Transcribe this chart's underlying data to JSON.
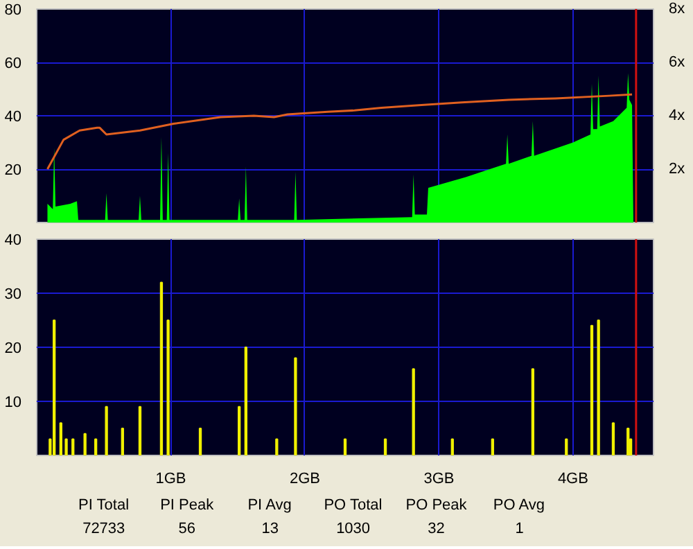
{
  "chart_data": [
    {
      "type": "area",
      "xlim": [
        0,
        4.6
      ],
      "ylim": [
        0,
        80
      ],
      "yticks": [
        20,
        40,
        60,
        80
      ],
      "y2lim": [
        0,
        8
      ],
      "y2ticks": [
        {
          "value": 2,
          "label": "2x"
        },
        {
          "value": 4,
          "label": "4x"
        },
        {
          "value": 6,
          "label": "6x"
        },
        {
          "value": 8,
          "label": "8x"
        }
      ],
      "xticks": [
        {
          "value": 1,
          "label": null
        },
        {
          "value": 2,
          "label": null
        },
        {
          "value": 3,
          "label": null
        },
        {
          "value": 4,
          "label": null
        }
      ],
      "tick_labels": "y",
      "grid": true,
      "ref_lines": [
        {
          "axis": "x",
          "value": 4.47,
          "color": "#d01010"
        }
      ],
      "series": [
        {
          "color": "#00ff00",
          "x": [
            0.08,
            0.12,
            0.13,
            0.14,
            0.25,
            0.3,
            0.31,
            0.51,
            0.52,
            0.53,
            0.76,
            0.77,
            0.78,
            0.92,
            0.93,
            0.94,
            0.97,
            0.98,
            0.99,
            1.5,
            1.51,
            1.52,
            1.55,
            1.56,
            1.57,
            1.92,
            1.93,
            1.94,
            2.8,
            2.81,
            2.82,
            2.91,
            2.92,
            3.2,
            3.5,
            3.51,
            3.52,
            3.69,
            3.7,
            3.71,
            4.0,
            4.13,
            4.14,
            4.15,
            4.18,
            4.19,
            4.2,
            4.3,
            4.4,
            4.41,
            4.42,
            4.44,
            4.45
          ],
          "values": [
            7,
            5,
            28,
            6,
            7,
            8,
            1,
            1,
            11,
            1,
            1,
            10,
            1,
            1,
            32,
            1,
            1,
            26,
            1,
            1,
            9,
            1,
            1,
            21,
            1,
            1,
            19,
            1,
            2,
            18,
            3,
            3,
            13,
            17,
            22,
            33,
            22,
            25,
            38,
            25,
            30,
            33,
            52,
            35,
            35,
            55,
            36,
            38,
            43,
            56,
            46,
            44,
            0
          ]
        },
        {
          "type": "line",
          "axis": "y2",
          "color": "#e06020",
          "x": [
            0.08,
            0.2,
            0.32,
            0.45,
            0.47,
            0.52,
            0.77,
            1.02,
            1.37,
            1.62,
            1.77,
            1.87,
            2.17,
            2.37,
            2.57,
            2.87,
            3.17,
            3.52,
            3.87,
            4.27,
            4.44
          ],
          "values": [
            2.0,
            3.1,
            3.45,
            3.55,
            3.55,
            3.3,
            3.45,
            3.7,
            3.95,
            4.0,
            3.95,
            4.05,
            4.15,
            4.2,
            4.3,
            4.4,
            4.5,
            4.6,
            4.65,
            4.75,
            4.8
          ]
        }
      ]
    },
    {
      "type": "bar",
      "color": "#f0f000",
      "xlim": [
        0,
        4.6
      ],
      "ylim": [
        0,
        40
      ],
      "yticks": [
        10,
        20,
        30,
        40
      ],
      "xticks": [
        {
          "value": 1,
          "label": "1GB"
        },
        {
          "value": 2,
          "label": "2GB"
        },
        {
          "value": 3,
          "label": "3GB"
        },
        {
          "value": 4,
          "label": "4GB"
        }
      ],
      "grid": true,
      "ref_lines": [
        {
          "axis": "x",
          "value": 4.47,
          "color": "#d01010"
        }
      ],
      "x": [
        0.1,
        0.13,
        0.18,
        0.22,
        0.27,
        0.36,
        0.44,
        0.52,
        0.64,
        0.77,
        0.93,
        0.98,
        1.22,
        1.51,
        1.56,
        1.79,
        1.93,
        2.3,
        2.6,
        2.81,
        3.1,
        3.4,
        3.7,
        3.95,
        4.14,
        4.19,
        4.3,
        4.41,
        4.43
      ],
      "values": [
        3,
        25,
        6,
        3,
        3,
        4,
        3,
        9,
        5,
        9,
        32,
        25,
        5,
        9,
        20,
        3,
        18,
        3,
        3,
        16,
        3,
        3,
        16,
        3,
        24,
        25,
        6,
        5,
        3
      ],
      "annotations": [
        "PI Total",
        "72733",
        "PI Peak",
        "56",
        "PI Avg",
        "13",
        "PO Total",
        "1030",
        "PO Peak",
        "32",
        "PO Avg",
        "1"
      ]
    }
  ]
}
